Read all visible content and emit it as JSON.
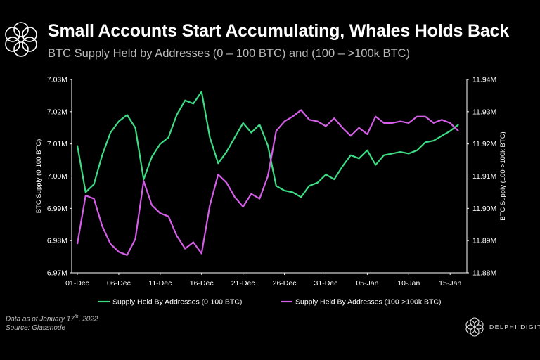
{
  "header": {
    "title": "Small Accounts Start Accumulating, Whales Holds Back",
    "subtitle": "BTC Supply Held by Addresses (0 – 100 BTC) and (100 – >100k BTC)"
  },
  "footer": {
    "note_prefix": "Data as of January 17",
    "note_sup": "th",
    "note_suffix": ", 2022",
    "source": "Source: Glassnode",
    "brand": "DELPHI DIGITAL"
  },
  "colors": {
    "green": "#3ddc84",
    "purple": "#d55ee8",
    "axis": "#ffffff",
    "grid": "#333333"
  },
  "chart_data": {
    "type": "line",
    "xlabel": "",
    "x_tick_labels": [
      "01-Dec",
      "06-Dec",
      "11-Dec",
      "16-Dec",
      "21-Dec",
      "26-Dec",
      "31-Dec",
      "05-Jan",
      "10-Jan",
      "15-Jan"
    ],
    "x_range": [
      0,
      46
    ],
    "y_left": {
      "label": "BTC Supply (0-100 BTC)",
      "range": [
        6.97,
        7.03
      ],
      "ticks": [
        6.97,
        6.98,
        6.99,
        7.0,
        7.01,
        7.02,
        7.03
      ],
      "tick_labels": [
        "6.97M",
        "6.98M",
        "6.99M",
        "7.00M",
        "7.01M",
        "7.02M",
        "7.03M"
      ]
    },
    "y_right": {
      "label": "BTC Supply (100->100k BTC)",
      "range": [
        11.88,
        11.94
      ],
      "ticks": [
        11.88,
        11.89,
        11.9,
        11.91,
        11.92,
        11.93,
        11.94
      ],
      "tick_labels": [
        "11.88M",
        "11.89M",
        "11.90M",
        "11.91M",
        "11.92M",
        "11.93M",
        "11.94M"
      ]
    },
    "series": [
      {
        "name": "Supply Held By Addresses (0-100 BTC)",
        "axis": "left",
        "color": "#3ddc84",
        "x": [
          0,
          1,
          2,
          3,
          4,
          5,
          6,
          7,
          8,
          9,
          10,
          11,
          12,
          13,
          14,
          15,
          16,
          17,
          18,
          19,
          20,
          21,
          22,
          23,
          24,
          25,
          26,
          27,
          28,
          29,
          30,
          31,
          32,
          33,
          34,
          35,
          36,
          37,
          38,
          39,
          40,
          41,
          42,
          43,
          44,
          45,
          46
        ],
        "values": [
          7.0095,
          6.995,
          6.9975,
          7.0065,
          7.0135,
          7.017,
          7.019,
          7.015,
          6.999,
          7.006,
          7.01,
          7.012,
          7.019,
          7.0235,
          7.0225,
          7.0262,
          7.012,
          7.004,
          7.0075,
          7.012,
          7.0165,
          7.0135,
          7.016,
          7.0095,
          6.997,
          6.9955,
          6.995,
          6.9935,
          6.997,
          6.998,
          7.0005,
          6.999,
          7.003,
          7.0065,
          7.0055,
          7.008,
          7.0035,
          7.0065,
          7.007,
          7.0075,
          7.007,
          7.008,
          7.0105,
          7.011,
          7.0125,
          7.014,
          7.016
        ]
      },
      {
        "name": "Supply Held By Addresses (100->100k BTC)",
        "axis": "right",
        "color": "#d55ee8",
        "x": [
          0,
          1,
          2,
          3,
          4,
          5,
          6,
          7,
          8,
          9,
          10,
          11,
          12,
          13,
          14,
          15,
          16,
          17,
          18,
          19,
          20,
          21,
          22,
          23,
          24,
          25,
          26,
          27,
          28,
          29,
          30,
          31,
          32,
          33,
          34,
          35,
          36,
          37,
          38,
          39,
          40,
          41,
          42,
          43,
          44,
          45,
          46
        ],
        "values": [
          11.889,
          11.904,
          11.903,
          11.8945,
          11.889,
          11.8865,
          11.8855,
          11.8905,
          11.9085,
          11.901,
          11.8985,
          11.8975,
          11.8915,
          11.8875,
          11.8895,
          11.886,
          11.901,
          11.9105,
          11.908,
          11.9035,
          11.9005,
          11.9045,
          11.903,
          11.91,
          11.924,
          11.927,
          11.9285,
          11.9305,
          11.9275,
          11.927,
          11.9255,
          11.928,
          11.925,
          11.9225,
          11.925,
          11.923,
          11.9285,
          11.9265,
          11.9265,
          11.927,
          11.9265,
          11.9285,
          11.9285,
          11.9265,
          11.9275,
          11.9265,
          11.924
        ]
      }
    ],
    "legend_position": "bottom-center"
  }
}
